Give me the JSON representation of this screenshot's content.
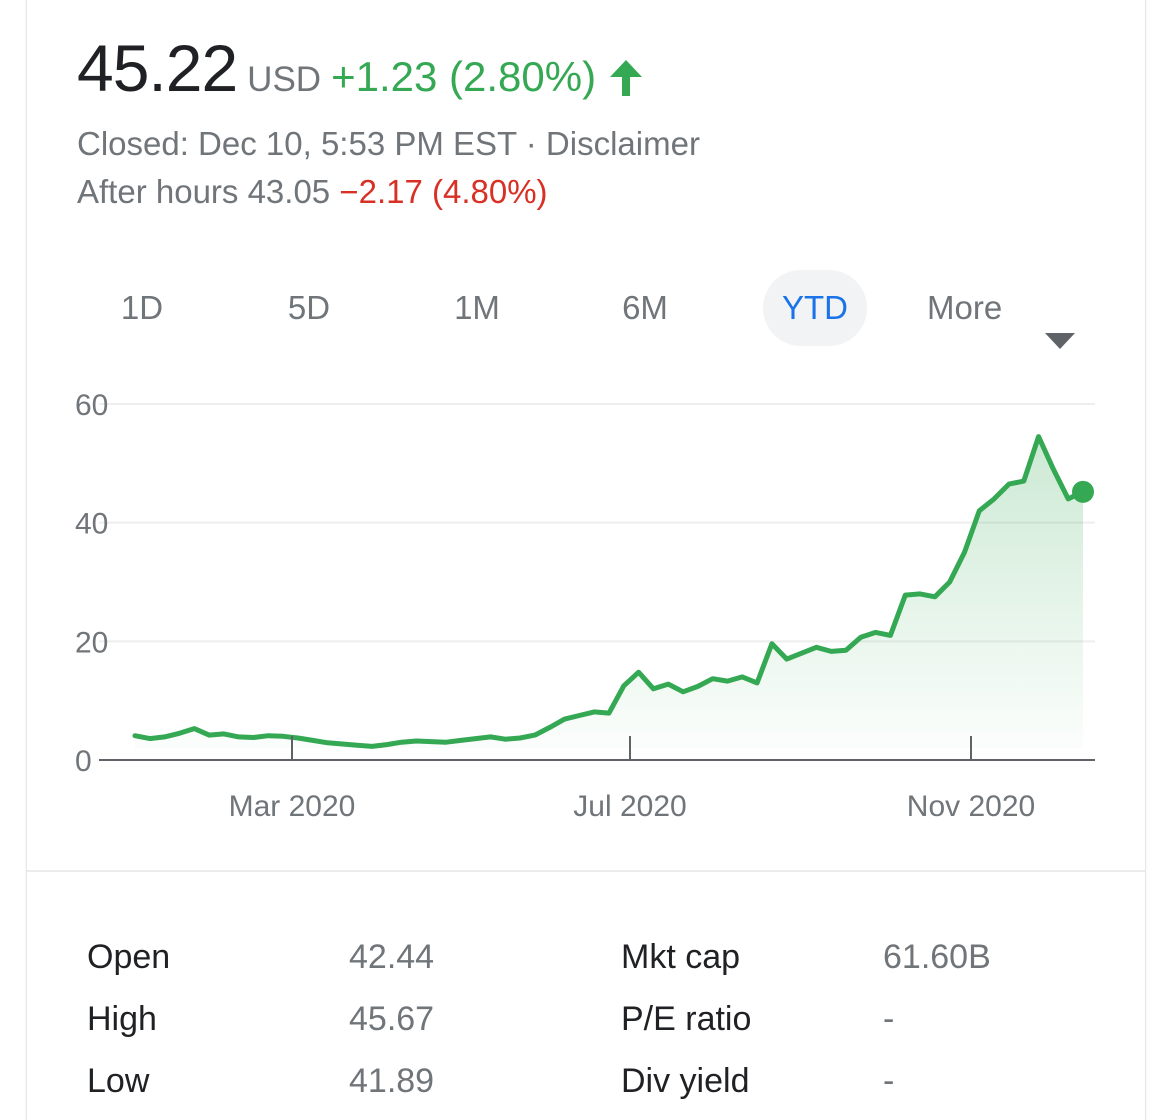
{
  "quote": {
    "price": "45.22",
    "currency": "USD",
    "change": "+1.23 (2.80%)",
    "up_color": "#34a853",
    "closed_text": "Closed: Dec 10, 5:53 PM EST · Disclaimer",
    "after_hours_label": "After hours 43.05",
    "after_hours_change": "−2.17 (4.80%)",
    "down_color": "#d93025",
    "arrow_icon": "up-arrow-icon"
  },
  "range_tabs": {
    "items": [
      "1D",
      "5D",
      "1M",
      "6M",
      "YTD"
    ],
    "selected": "YTD",
    "more_label": "More",
    "more_icon": "caret-down-icon",
    "active_color": "#1a73e8"
  },
  "chart_data": {
    "type": "area",
    "x_tick_labels": [
      "Mar 2020",
      "Jul 2020",
      "Nov 2020"
    ],
    "y_ticks": [
      0,
      20,
      40,
      60
    ],
    "ylim": [
      0,
      60
    ],
    "grid": true,
    "line_color": "#34a853",
    "series": [
      {
        "values": [
          4.1,
          3.6,
          3.9,
          4.5,
          5.3,
          4.2,
          4.4,
          3.9,
          3.8,
          4.1,
          4.0,
          3.7,
          3.3,
          2.9,
          2.7,
          2.5,
          2.3,
          2.6,
          3.0,
          3.2,
          3.1,
          3.0,
          3.3,
          3.6,
          3.9,
          3.5,
          3.7,
          4.2,
          5.5,
          6.9,
          7.5,
          8.1,
          7.9,
          12.5,
          14.8,
          12.0,
          12.8,
          11.5,
          12.4,
          13.7,
          13.3,
          14.0,
          13.0,
          19.6,
          17.0,
          18.0,
          19.0,
          18.3,
          18.5,
          20.7,
          21.5,
          21.0,
          27.8,
          28.0,
          27.5,
          30.0,
          35.0,
          42.0,
          44.0,
          46.5,
          47.0,
          54.5,
          49.0,
          44.0,
          45.2
        ]
      }
    ]
  },
  "stats": {
    "left": [
      {
        "label": "Open",
        "value": "42.44"
      },
      {
        "label": "High",
        "value": "45.67"
      },
      {
        "label": "Low",
        "value": "41.89"
      }
    ],
    "right": [
      {
        "label": "Mkt cap",
        "value": "61.60B"
      },
      {
        "label": "P/E ratio",
        "value": "-"
      },
      {
        "label": "Div yield",
        "value": "-"
      }
    ]
  }
}
